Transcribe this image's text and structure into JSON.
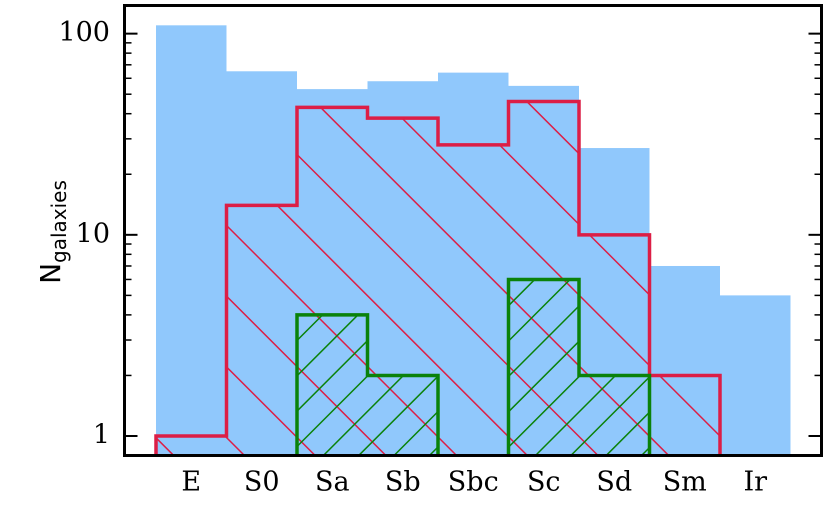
{
  "chart_data": {
    "type": "histogram",
    "ylabel": "N",
    "ylabel_sub": "galaxies",
    "categories": [
      "E",
      "S0",
      "Sa",
      "Sb",
      "Sbc",
      "Sc",
      "Sd",
      "Sm",
      "Ir"
    ],
    "series": [
      {
        "style": "fill",
        "color": "#90c8fc",
        "values": [
          110,
          65,
          53,
          58,
          64,
          55,
          27,
          7,
          5
        ]
      },
      {
        "style": "hatch",
        "hatch": "\\",
        "color": "#dc1e46",
        "values": [
          1,
          14,
          43,
          38,
          28,
          46,
          10,
          2,
          null
        ]
      },
      {
        "style": "hatch",
        "hatch": "/",
        "color": "#0a820a",
        "values": [
          null,
          null,
          4,
          2,
          null,
          6,
          2,
          null,
          null
        ]
      }
    ],
    "ylim": [
      0.8,
      138
    ],
    "yscale": "log",
    "yticks": [
      1,
      10,
      100
    ],
    "yminor": [
      2,
      3,
      4,
      5,
      6,
      7,
      8,
      9,
      20,
      30,
      40,
      50,
      60,
      70,
      80,
      90
    ]
  }
}
